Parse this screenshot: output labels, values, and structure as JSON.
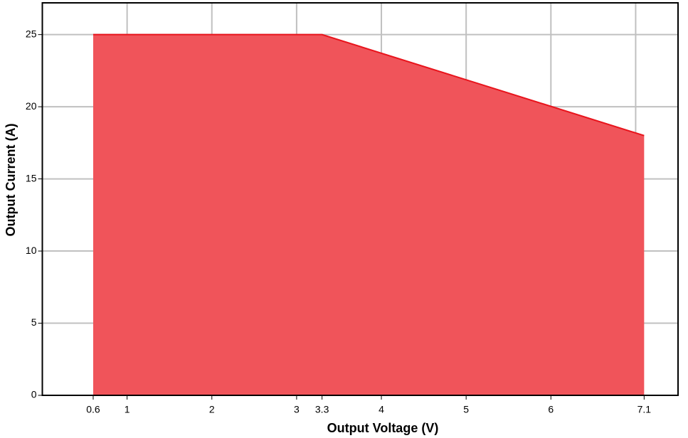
{
  "chart_data": {
    "type": "area",
    "x_label": "Output Voltage (V)",
    "y_label": "Output Current (A)",
    "x": [
      0.6,
      3.3,
      7.1
    ],
    "values": [
      25,
      25,
      18
    ],
    "fill_color": "#f0545a",
    "color": "#e8141c",
    "xlim": [
      0,
      7.5
    ],
    "xticks": [
      0.6,
      1,
      2,
      3,
      3.3,
      4,
      5,
      6,
      7.1
    ],
    "xgrid": [
      1,
      2,
      3,
      4,
      5,
      6,
      7
    ],
    "ylim": [
      0,
      27.2
    ],
    "yticks": [
      0,
      5,
      10,
      15,
      20,
      25
    ],
    "grid": true
  }
}
